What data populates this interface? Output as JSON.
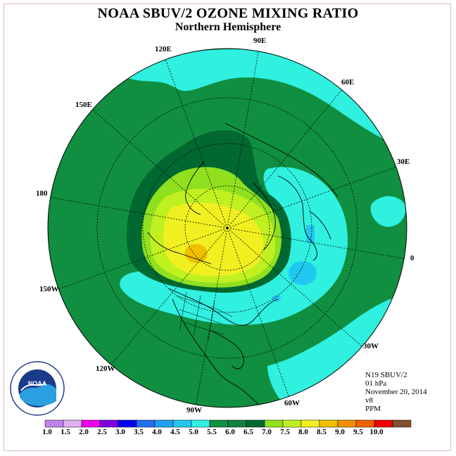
{
  "title": "NOAA SBUV/2 OZONE MIXING RATIO",
  "subtitle": "Northern Hemisphere",
  "info": {
    "satellite": "N19 SBUV/2",
    "level": "01 hPa",
    "date": "November 20, 2014",
    "version": "v8",
    "units": "PPM"
  },
  "logo": {
    "text": "NOAA",
    "ring_text": "NATIONAL OCEANIC AND ATMOSPHERIC ADMINISTRATION • U.S. DEPARTMENT OF COMMERCE"
  },
  "longitude_labels": [
    "90E",
    "60E",
    "30E",
    "0",
    "30W",
    "60W",
    "90W",
    "120W",
    "150W",
    "180",
    "150E",
    "120E"
  ],
  "colorbar": {
    "labels": [
      "1.0",
      "1.5",
      "2.0",
      "2.5",
      "3.0",
      "3.5",
      "4.0",
      "4.5",
      "5.0",
      "5.5",
      "6.0",
      "6.5",
      "7.0",
      "7.5",
      "8.0",
      "8.5",
      "9.0",
      "9.5",
      "10.0"
    ],
    "colors": [
      "#c080f0",
      "#e0b0f0",
      "#f000f0",
      "#8000e0",
      "#0000f0",
      "#2070f0",
      "#20a0f0",
      "#20c8f0",
      "#30f0e0",
      "#109040",
      "#108040",
      "#006830",
      "#90e020",
      "#c0f020",
      "#f0f020",
      "#f0c000",
      "#f09000",
      "#f06000",
      "#f00000",
      "#805030"
    ]
  }
}
